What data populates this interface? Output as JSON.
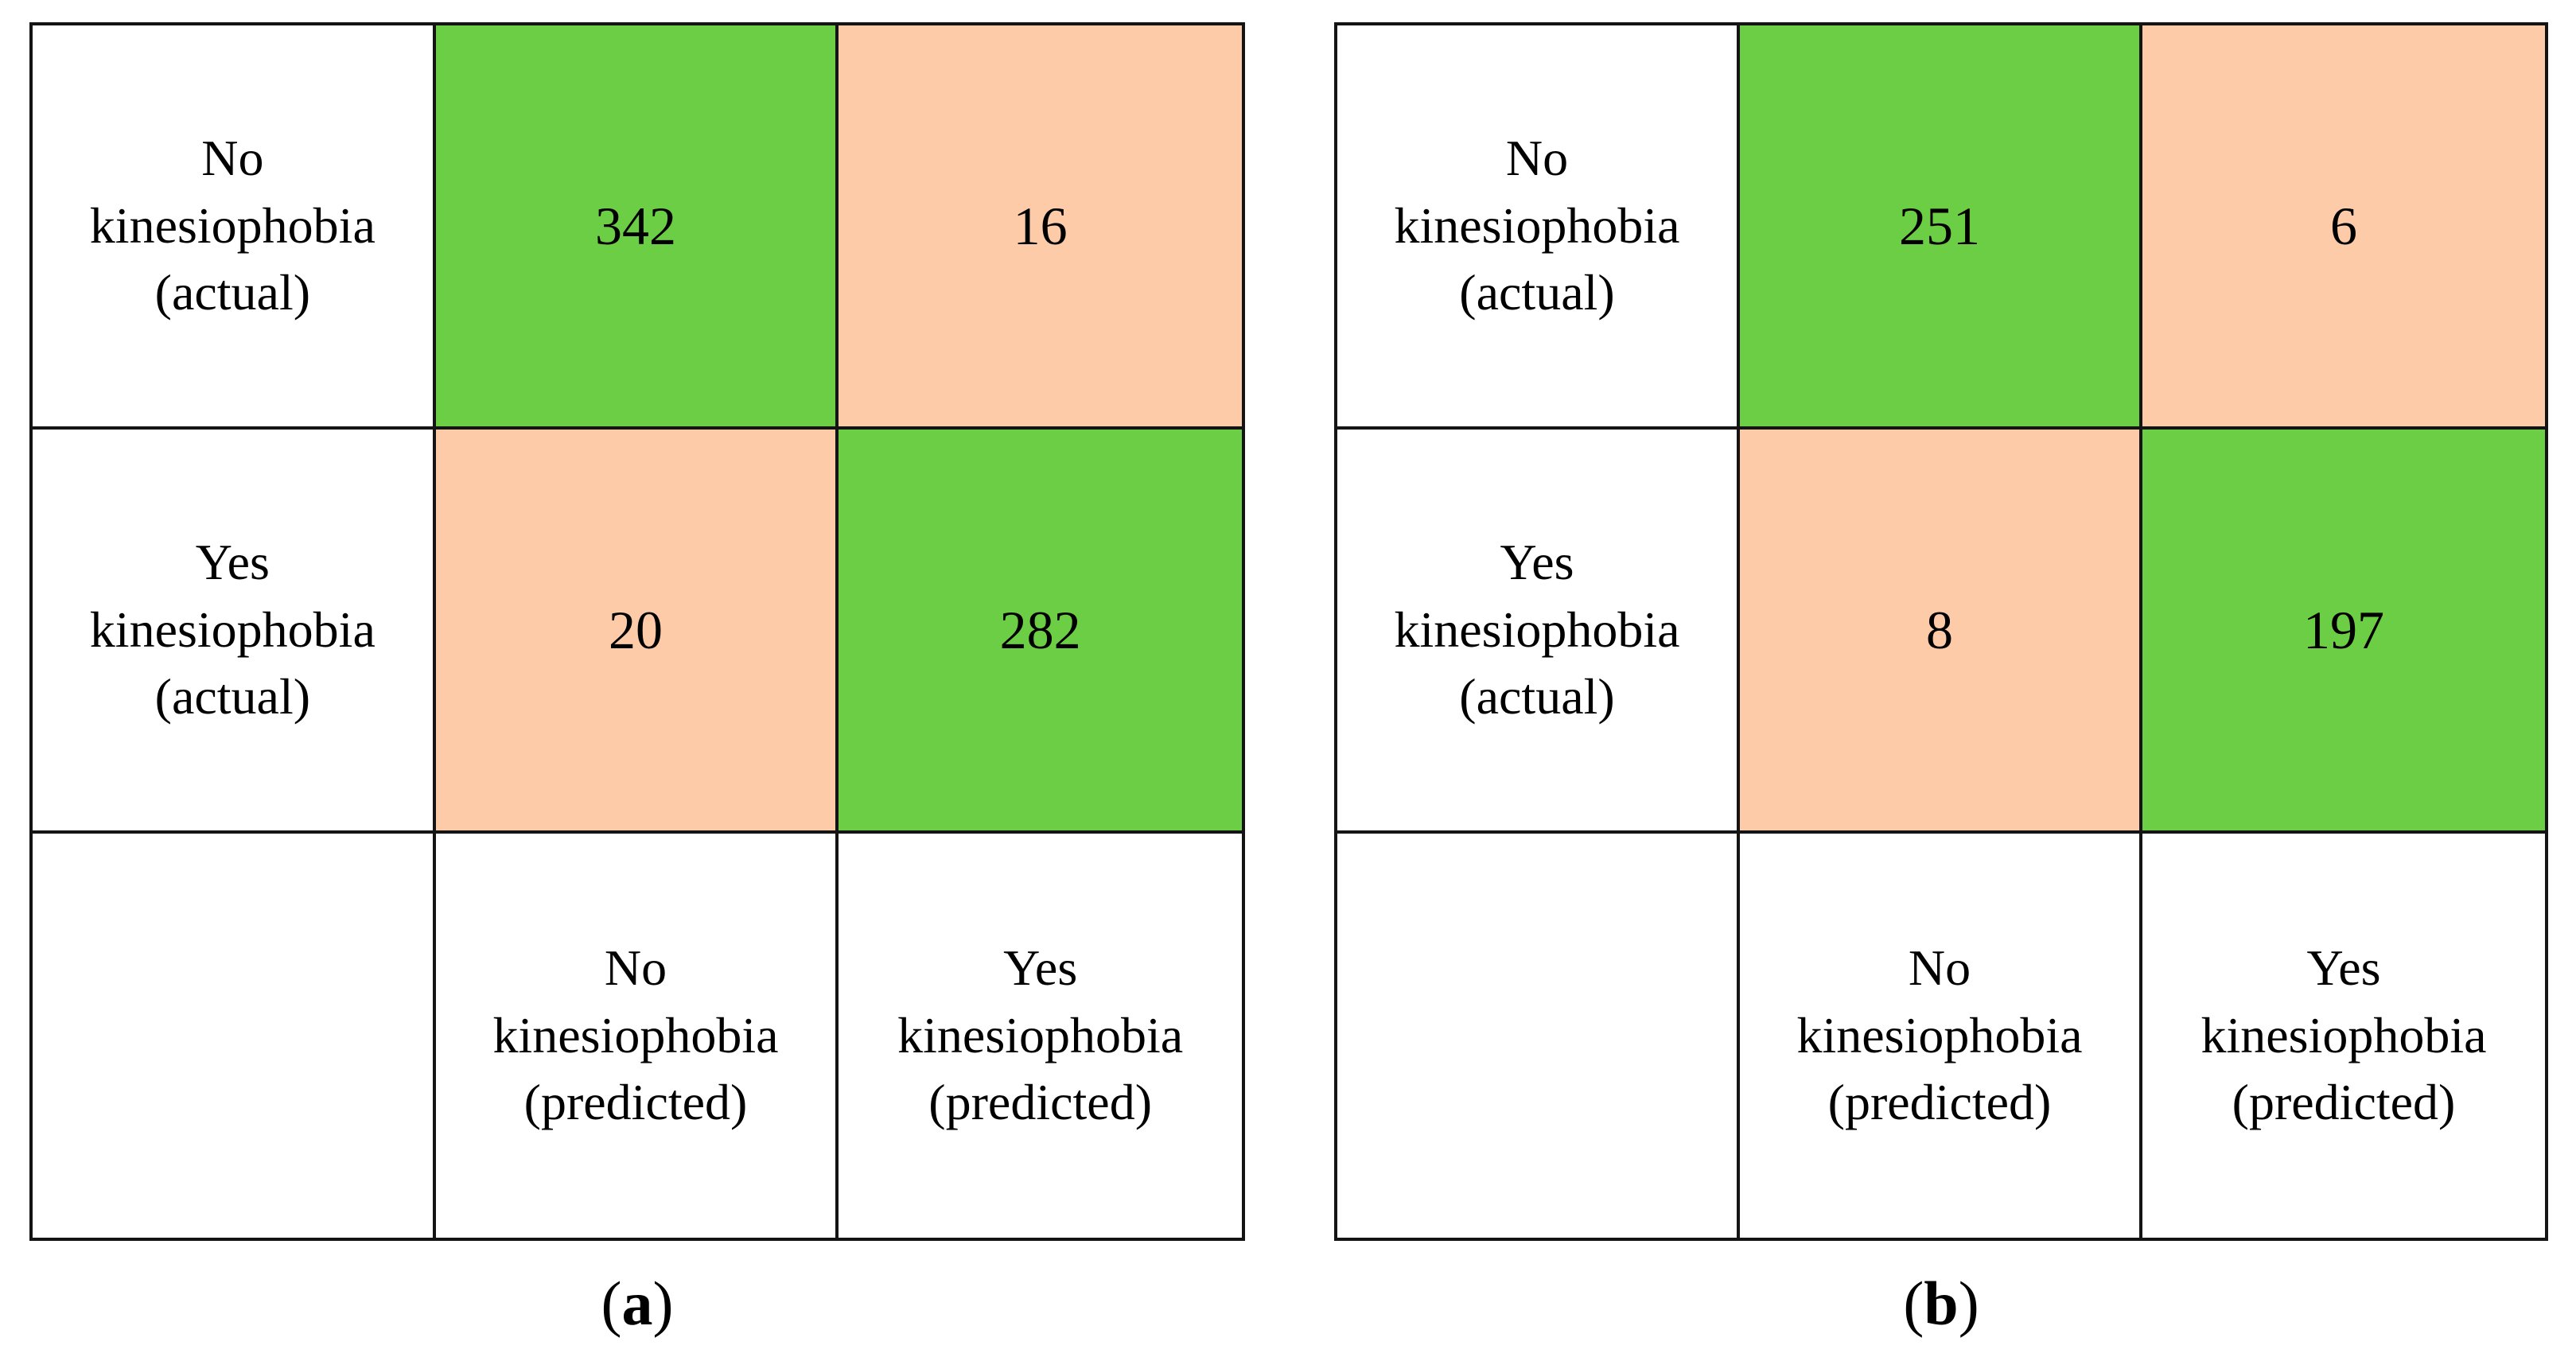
{
  "colors": {
    "correct_cell_green": "#6CCE44",
    "error_cell_peach": "#FDCBA8",
    "border_black": "#141414"
  },
  "matrices": [
    {
      "caption_open": "(",
      "caption_letter": "a",
      "caption_close": ")",
      "row_labels": {
        "actual_no": "No\nkinesiophobia\n(actual)",
        "actual_yes": "Yes\nkinesiophobia\n(actual)"
      },
      "col_labels": {
        "predicted_no": "No\nkinesiophobia\n(predicted)",
        "predicted_yes": "Yes\nkinesiophobia\n(predicted)"
      },
      "cells": {
        "true_negative": "342",
        "false_positive": "16",
        "false_negative": "20",
        "true_positive": "282"
      }
    },
    {
      "caption_open": "(",
      "caption_letter": "b",
      "caption_close": ")",
      "row_labels": {
        "actual_no": "No\nkinesiophobia\n(actual)",
        "actual_yes": "Yes\nkinesiophobia\n(actual)"
      },
      "col_labels": {
        "predicted_no": "No\nkinesiophobia\n(predicted)",
        "predicted_yes": "Yes\nkinesiophobia\n(predicted)"
      },
      "cells": {
        "true_negative": "251",
        "false_positive": "6",
        "false_negative": "8",
        "true_positive": "197"
      }
    }
  ],
  "chart_data": [
    {
      "type": "heatmap",
      "title": "(a)",
      "rows": [
        "No kinesiophobia (actual)",
        "Yes kinesiophobia (actual)"
      ],
      "columns": [
        "No kinesiophobia (predicted)",
        "Yes kinesiophobia (predicted)"
      ],
      "values": [
        [
          342,
          16
        ],
        [
          20,
          282
        ]
      ],
      "cell_colors": [
        [
          "green",
          "peach"
        ],
        [
          "peach",
          "green"
        ]
      ],
      "legend_position": "none",
      "grid": true
    },
    {
      "type": "heatmap",
      "title": "(b)",
      "rows": [
        "No kinesiophobia (actual)",
        "Yes kinesiophobia (actual)"
      ],
      "columns": [
        "No kinesiophobia (predicted)",
        "Yes kinesiophobia (predicted)"
      ],
      "values": [
        [
          251,
          6
        ],
        [
          8,
          197
        ]
      ],
      "cell_colors": [
        [
          "green",
          "peach"
        ],
        [
          "peach",
          "green"
        ]
      ],
      "legend_position": "none",
      "grid": true
    }
  ]
}
